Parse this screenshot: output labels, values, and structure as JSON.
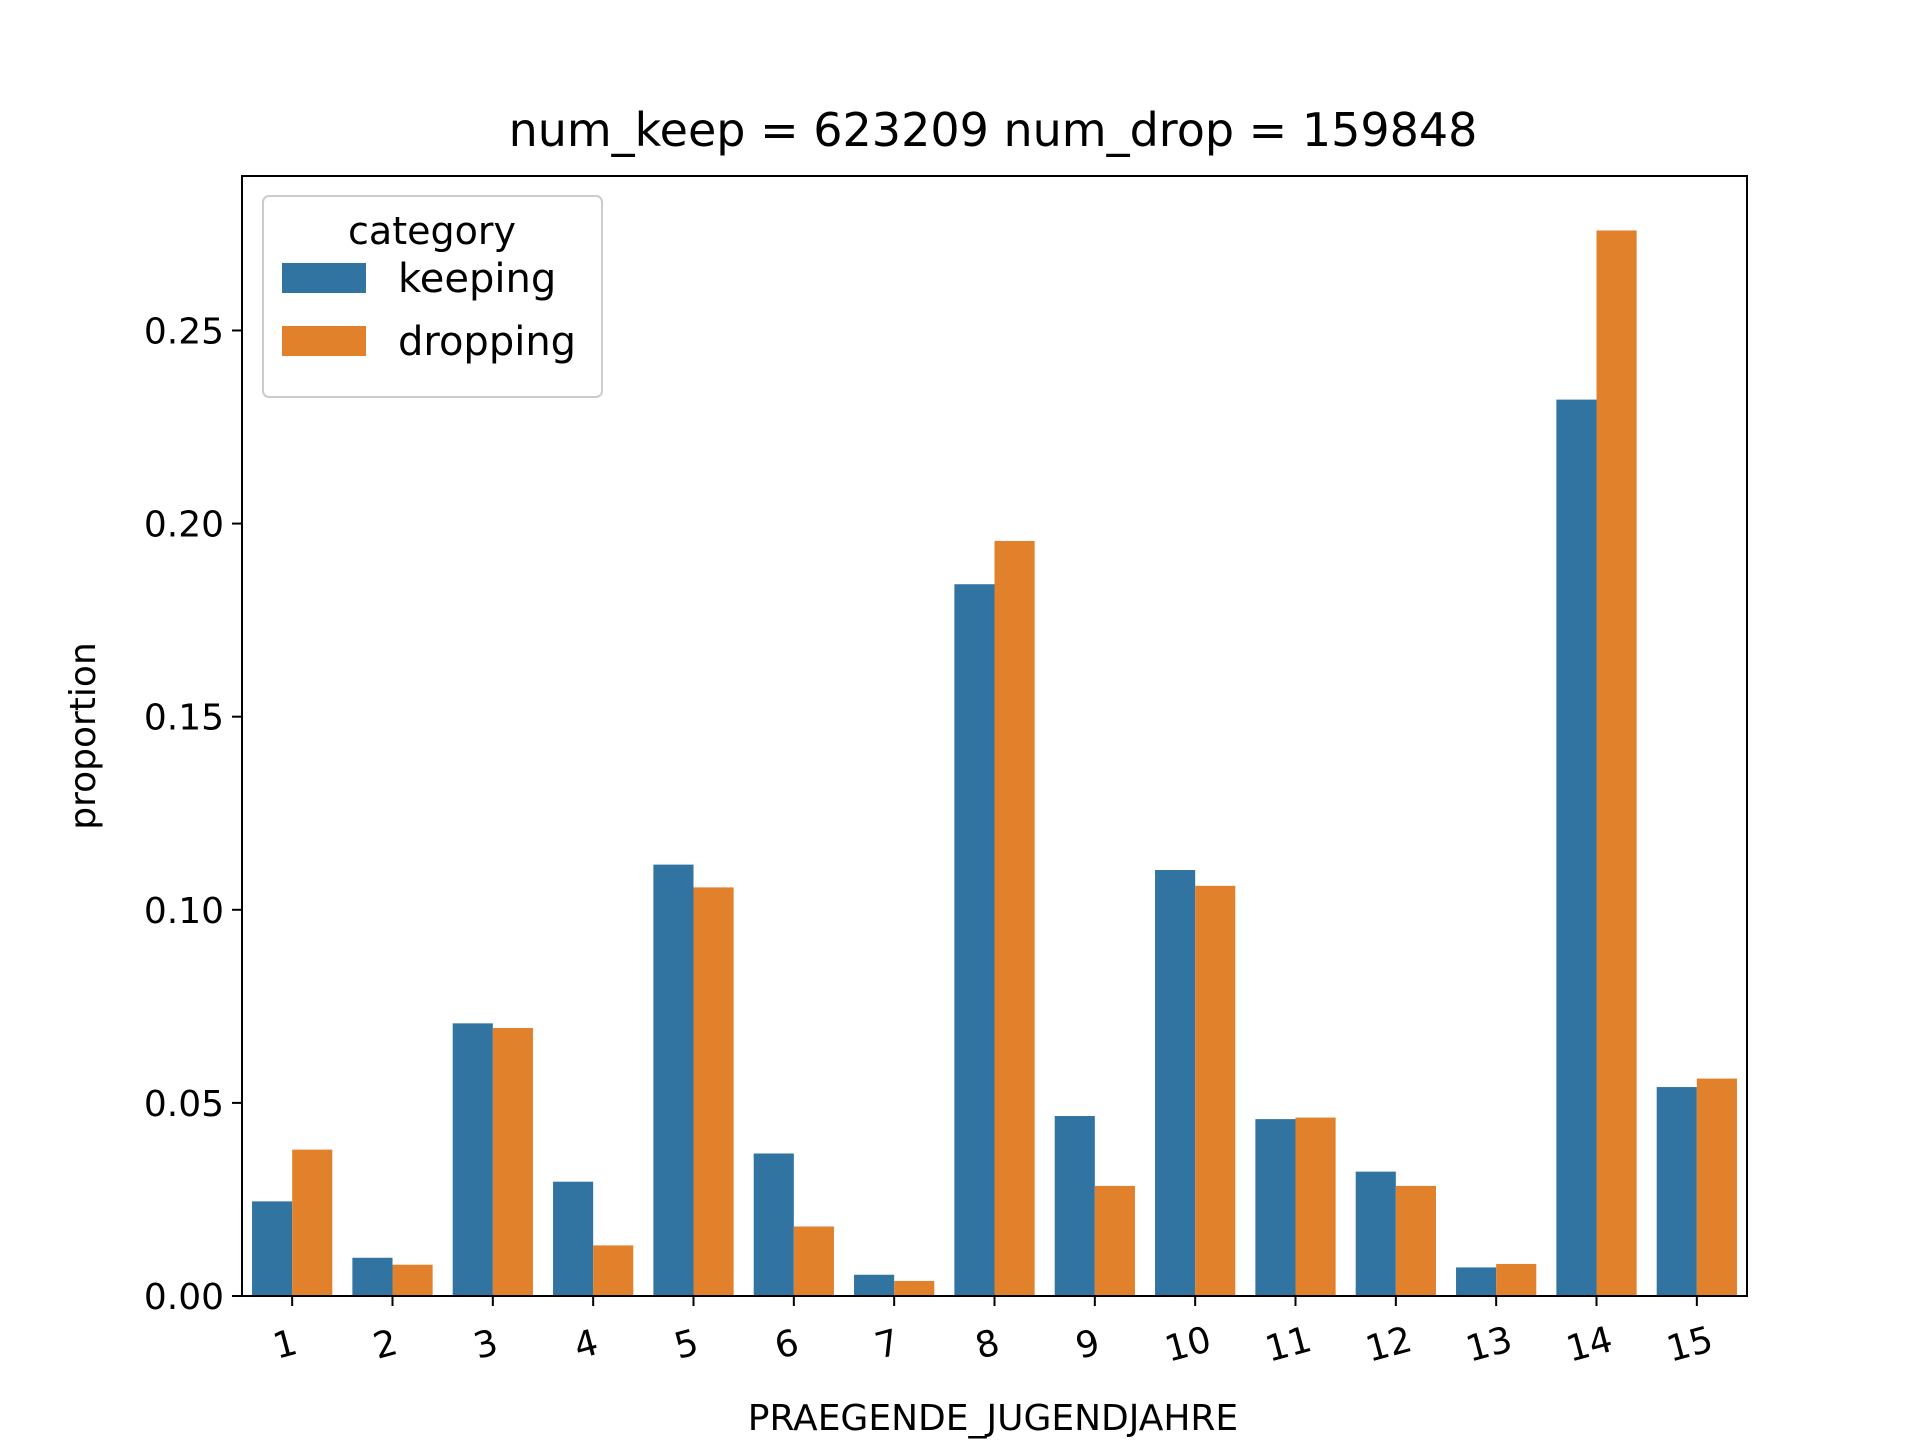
{
  "chart_data": {
    "type": "bar",
    "title": "num_keep = 623209  num_drop = 159848",
    "xlabel": "PRAEGENDE_JUGENDJAHRE",
    "ylabel": "proportion",
    "categories": [
      "1",
      "2",
      "3",
      "4",
      "5",
      "6",
      "7",
      "8",
      "9",
      "10",
      "11",
      "12",
      "13",
      "14",
      "15"
    ],
    "series": [
      {
        "name": "keeping",
        "color": "#3274a1",
        "values": [
          0.0245,
          0.0099,
          0.0706,
          0.0296,
          0.1117,
          0.0369,
          0.0055,
          0.1843,
          0.0466,
          0.1103,
          0.0458,
          0.0322,
          0.0074,
          0.2321,
          0.0541
        ]
      },
      {
        "name": "dropping",
        "color": "#e1812c",
        "values": [
          0.0379,
          0.0081,
          0.0694,
          0.0131,
          0.1058,
          0.018,
          0.0039,
          0.1955,
          0.0285,
          0.1062,
          0.0462,
          0.0285,
          0.0083,
          0.2759,
          0.0563
        ]
      }
    ],
    "ylim": [
      0,
      0.29
    ],
    "yticks": [
      0.0,
      0.05,
      0.1,
      0.15,
      0.2,
      0.25
    ],
    "ytick_labels": [
      "0.00",
      "0.05",
      "0.10",
      "0.15",
      "0.20",
      "0.25"
    ],
    "xtick_rotation": "slanted",
    "legend": {
      "title": "category",
      "position": "top-left"
    },
    "grid": false
  }
}
